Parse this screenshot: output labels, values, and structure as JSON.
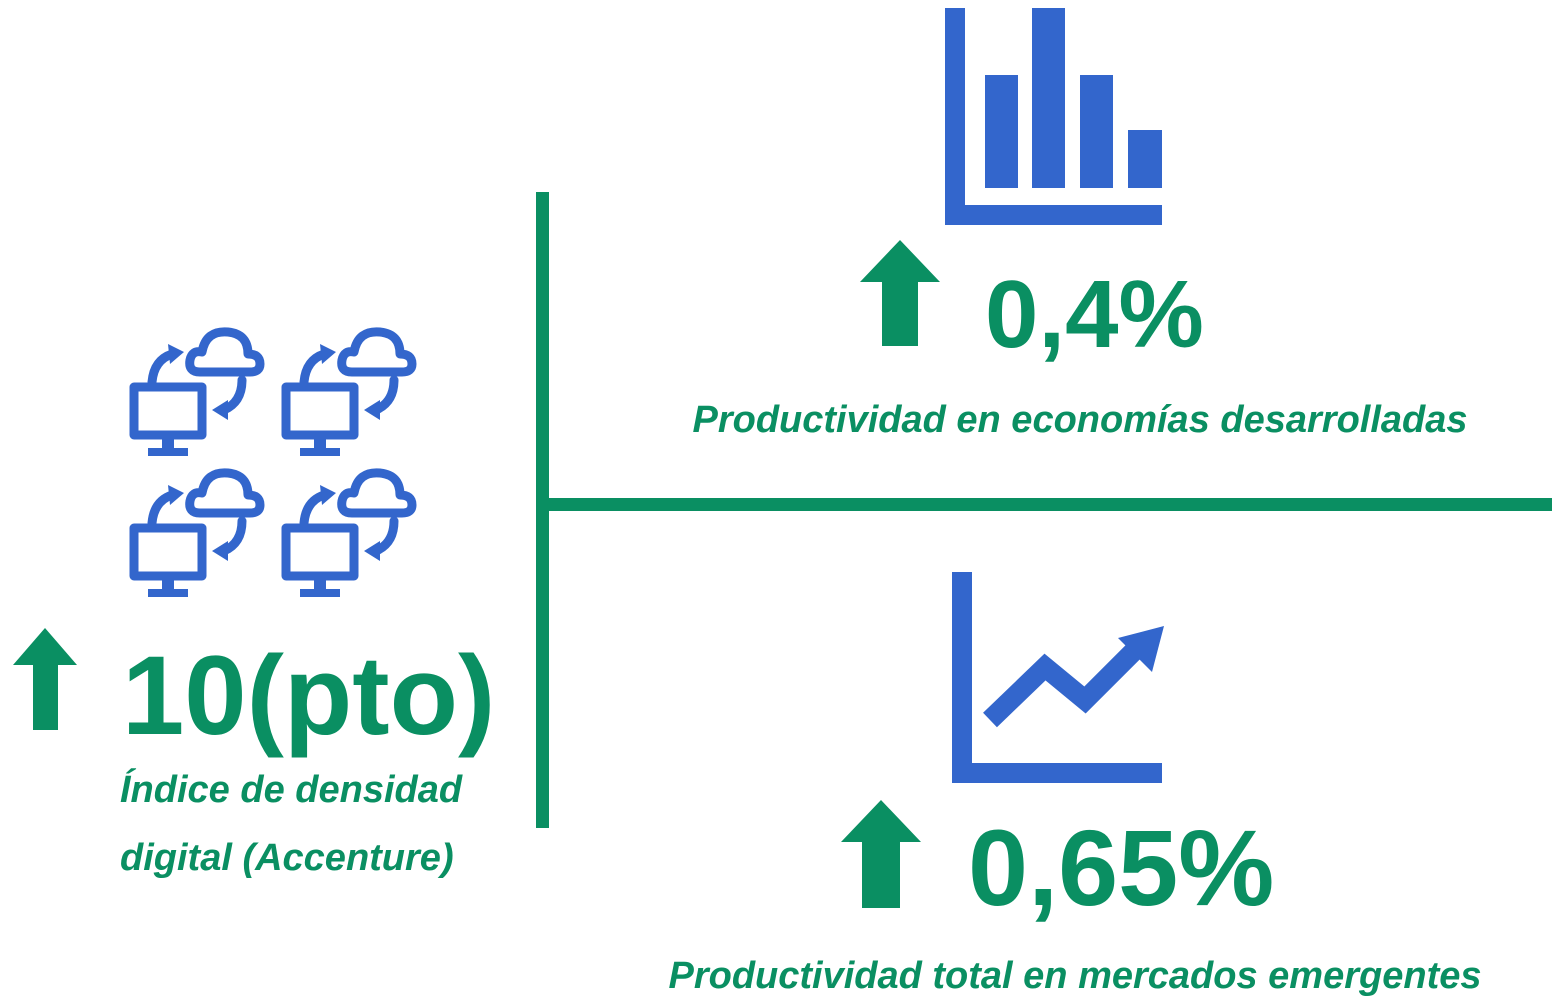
{
  "left": {
    "value": "10(pto)",
    "label": [
      "Índice de densidad",
      "digital (Accenture)"
    ]
  },
  "top_right": {
    "value": "0,4%",
    "label": "Productividad en economías desarrolladas"
  },
  "bottom_right": {
    "value": "0,65%",
    "label": "Productividad total en mercados emergentes"
  }
}
